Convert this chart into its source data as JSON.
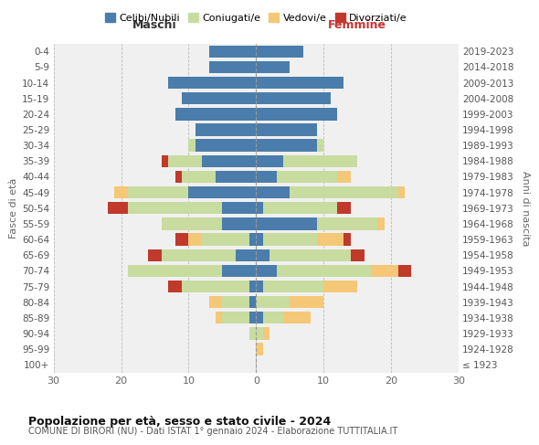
{
  "age_groups": [
    "0-4",
    "5-9",
    "10-14",
    "15-19",
    "20-24",
    "25-29",
    "30-34",
    "35-39",
    "40-44",
    "45-49",
    "50-54",
    "55-59",
    "60-64",
    "65-69",
    "70-74",
    "75-79",
    "80-84",
    "85-89",
    "90-94",
    "95-99",
    "100+"
  ],
  "birth_years": [
    "2019-2023",
    "2014-2018",
    "2009-2013",
    "2004-2008",
    "1999-2003",
    "1994-1998",
    "1989-1993",
    "1984-1988",
    "1979-1983",
    "1974-1978",
    "1969-1973",
    "1964-1968",
    "1959-1963",
    "1954-1958",
    "1949-1953",
    "1944-1948",
    "1939-1943",
    "1934-1938",
    "1929-1933",
    "1924-1928",
    "≤ 1923"
  ],
  "maschi": {
    "celibi": [
      7,
      7,
      13,
      11,
      12,
      9,
      9,
      8,
      6,
      10,
      5,
      5,
      1,
      3,
      5,
      1,
      1,
      1,
      0,
      0,
      0
    ],
    "coniugati": [
      0,
      0,
      0,
      0,
      0,
      0,
      1,
      5,
      5,
      9,
      14,
      9,
      7,
      11,
      14,
      10,
      4,
      4,
      1,
      0,
      0
    ],
    "vedovi": [
      0,
      0,
      0,
      0,
      0,
      0,
      0,
      0,
      0,
      2,
      0,
      0,
      2,
      0,
      0,
      0,
      2,
      1,
      0,
      0,
      0
    ],
    "divorziati": [
      0,
      0,
      0,
      0,
      0,
      0,
      0,
      1,
      1,
      0,
      3,
      0,
      2,
      2,
      0,
      2,
      0,
      0,
      0,
      0,
      0
    ]
  },
  "femmine": {
    "nubili": [
      7,
      5,
      13,
      11,
      12,
      9,
      9,
      4,
      3,
      5,
      1,
      9,
      1,
      2,
      3,
      1,
      0,
      1,
      0,
      0,
      0
    ],
    "coniugate": [
      0,
      0,
      0,
      0,
      0,
      0,
      1,
      11,
      9,
      16,
      11,
      9,
      8,
      12,
      14,
      9,
      5,
      3,
      1,
      0,
      0
    ],
    "vedove": [
      0,
      0,
      0,
      0,
      0,
      0,
      0,
      0,
      2,
      1,
      0,
      1,
      4,
      0,
      4,
      5,
      5,
      4,
      1,
      1,
      0
    ],
    "divorziate": [
      0,
      0,
      0,
      0,
      0,
      0,
      0,
      0,
      0,
      0,
      2,
      0,
      1,
      2,
      2,
      0,
      0,
      0,
      0,
      0,
      0
    ]
  },
  "colors": {
    "celibi": "#4a7dab",
    "coniugati": "#c8dca0",
    "vedovi": "#f5c878",
    "divorziati": "#c0392b"
  },
  "title1": "Popolazione per età, sesso e stato civile - 2024",
  "title2": "COMUNE DI BIRORI (NU) - Dati ISTAT 1° gennaio 2024 - Elaborazione TUTTITALIA.IT",
  "xlabel_left": "Maschi",
  "xlabel_right": "Femmine",
  "ylabel_left": "Fasce di età",
  "ylabel_right": "Anni di nascita",
  "xlim": 30,
  "bg_color": "#f0f0f0",
  "legend_labels": [
    "Celibi/Nubili",
    "Coniugati/e",
    "Vedovi/e",
    "Divorziati/e"
  ]
}
